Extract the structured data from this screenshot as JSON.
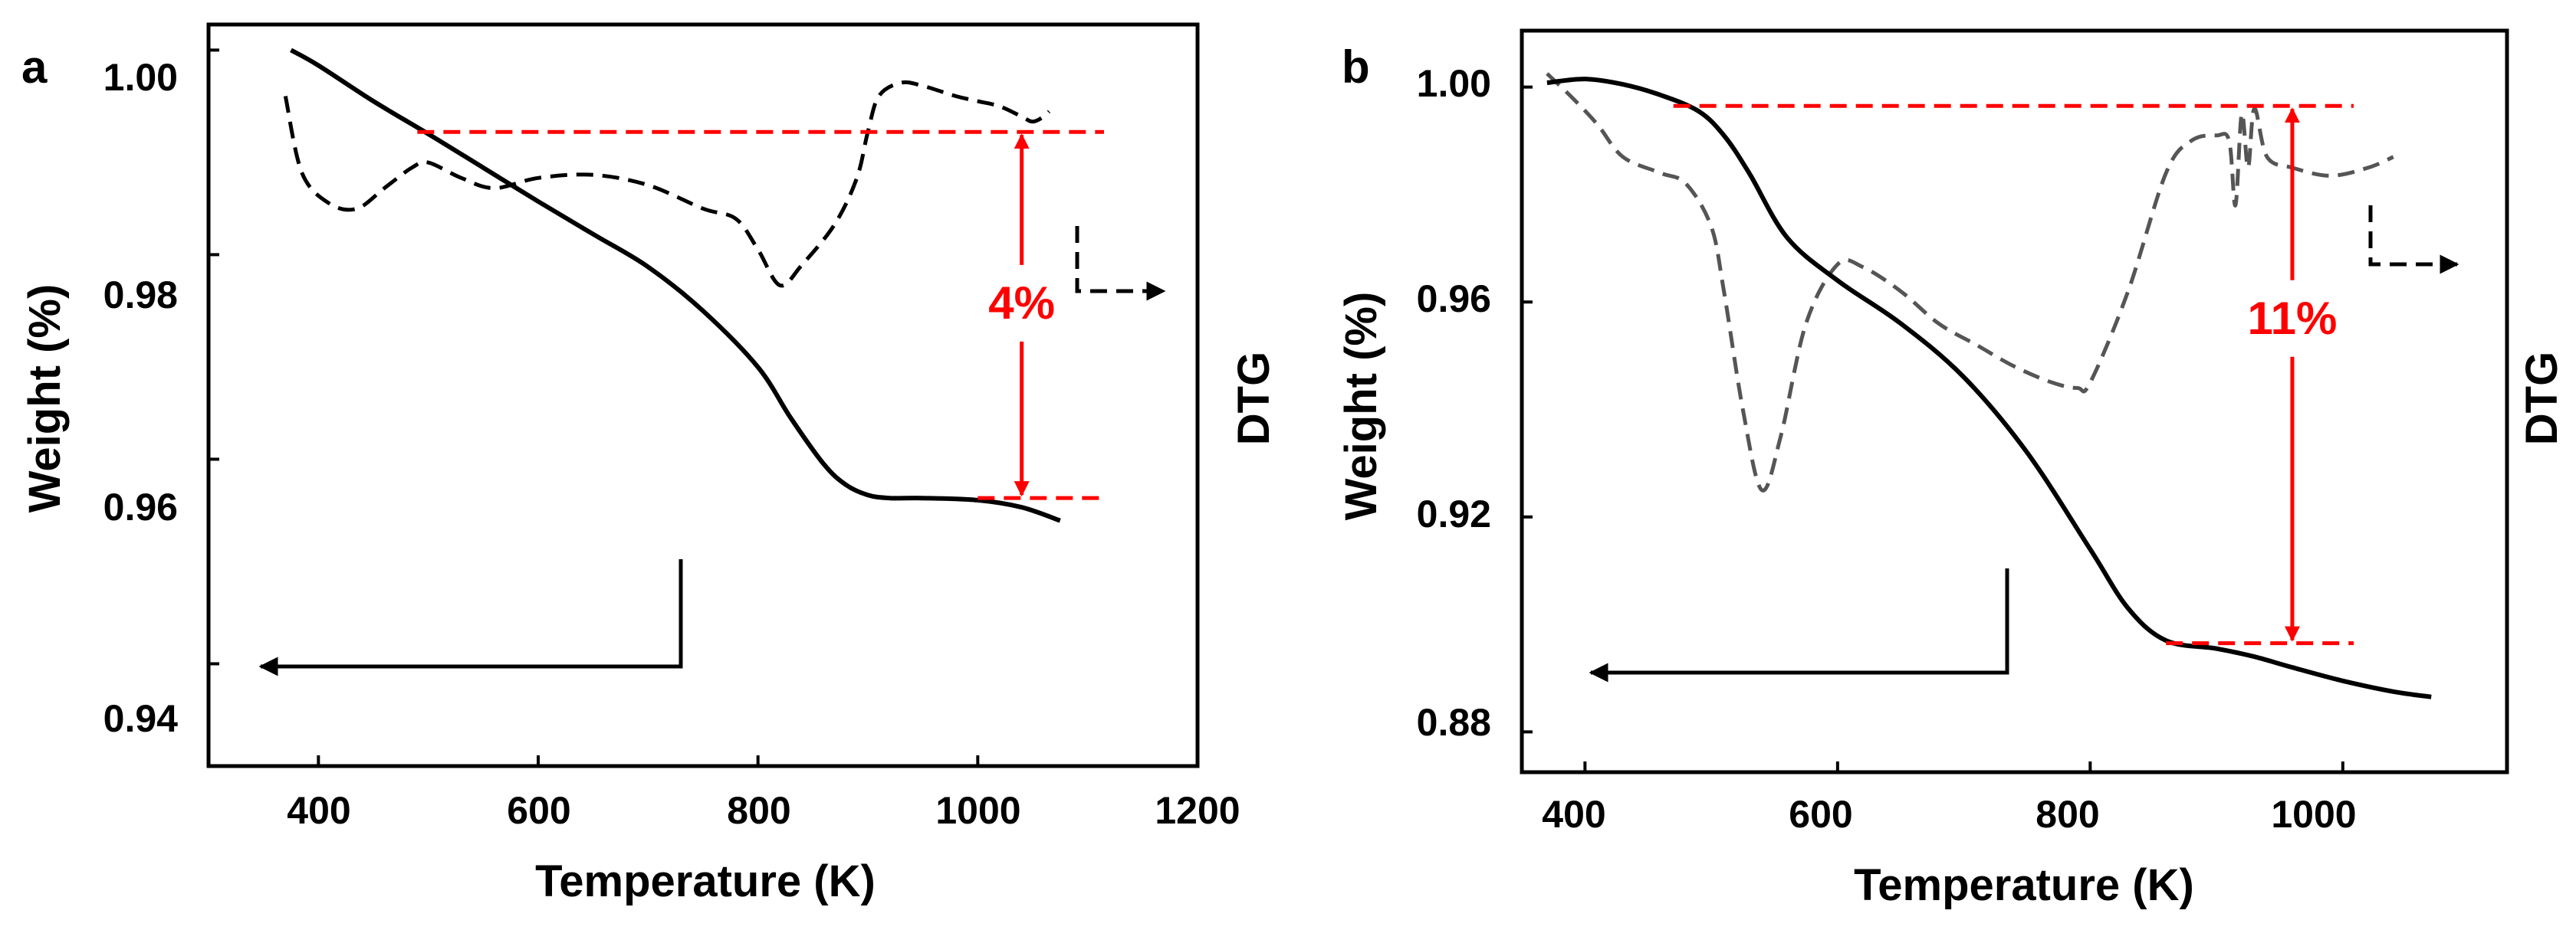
{
  "chart_data": [
    {
      "type": "line",
      "panel_label": "a",
      "xlabel": "Temperature (K)",
      "ylabel": "Weight (%)",
      "y2label": "DTG",
      "xlim": [
        300,
        1200
      ],
      "ylim": [
        0.93,
        1.0025
      ],
      "xticks": [
        400,
        600,
        800,
        1000,
        1200
      ],
      "yticks": [
        0.94,
        0.96,
        0.98,
        1.0
      ],
      "ytick_labels": [
        "0.94",
        "0.96",
        "0.98",
        "1.00"
      ],
      "series": [
        {
          "name": "Weight",
          "style": "solid",
          "color": "#000000",
          "x": [
            375,
            400,
            450,
            500,
            550,
            600,
            650,
            700,
            750,
            800,
            830,
            860,
            880,
            900,
            920,
            950,
            1000,
            1040,
            1075
          ],
          "y": [
            1.0,
            0.9985,
            0.995,
            0.9918,
            0.9885,
            0.9852,
            0.982,
            0.9788,
            0.9745,
            0.969,
            0.964,
            0.9595,
            0.9575,
            0.9565,
            0.9562,
            0.9562,
            0.956,
            0.9553,
            0.954
          ]
        },
        {
          "name": "DTG",
          "style": "dashed",
          "color": "#000000",
          "x": [
            370,
            385,
            410,
            435,
            460,
            485,
            500,
            530,
            560,
            600,
            650,
            700,
            750,
            780,
            800,
            820,
            840,
            870,
            890,
            900,
            910,
            930,
            950,
            980,
            1000,
            1020,
            1040,
            1050,
            1060,
            1065
          ],
          "y": [
            0.9955,
            0.988,
            0.985,
            0.9845,
            0.9865,
            0.9885,
            0.989,
            0.9875,
            0.9865,
            0.9875,
            0.9878,
            0.9868,
            0.9845,
            0.9835,
            0.9805,
            0.977,
            0.979,
            0.983,
            0.9875,
            0.992,
            0.9955,
            0.9968,
            0.9965,
            0.9955,
            0.995,
            0.9945,
            0.9935,
            0.993,
            0.9935,
            0.994
          ]
        }
      ],
      "annotation": {
        "text": "4%",
        "color": "#ff0000",
        "x": 1040,
        "y_top": 0.992,
        "y_bottom": 0.9562
      }
    },
    {
      "type": "line",
      "panel_label": "b",
      "xlabel": "Temperature (K)",
      "ylabel": "Weight (%)",
      "y2label": "DTG",
      "xlim": [
        350,
        1130
      ],
      "ylim": [
        0.8725,
        1.0105
      ],
      "xticks": [
        400,
        600,
        800,
        1000
      ],
      "yticks": [
        0.88,
        0.92,
        0.96,
        1.0
      ],
      "ytick_labels": [
        "0.88",
        "0.92",
        "0.96",
        "1.00"
      ],
      "series": [
        {
          "name": "Weight",
          "style": "solid",
          "color": "#000000",
          "x": [
            370,
            400,
            430,
            460,
            490,
            510,
            530,
            560,
            600,
            650,
            700,
            750,
            800,
            830,
            860,
            900,
            930,
            960,
            1000,
            1040,
            1070
          ],
          "y": [
            1.0008,
            1.0015,
            1.0005,
            0.9985,
            0.9955,
            0.991,
            0.984,
            0.972,
            0.964,
            0.956,
            0.946,
            0.932,
            0.914,
            0.903,
            0.897,
            0.8955,
            0.894,
            0.892,
            0.8895,
            0.8875,
            0.8865
          ]
        },
        {
          "name": "DTG",
          "style": "dashed",
          "color": "#555555",
          "x": [
            370,
            390,
            410,
            430,
            460,
            480,
            500,
            510,
            525,
            540,
            555,
            575,
            600,
            620,
            650,
            680,
            710,
            740,
            770,
            790,
            800,
            830,
            860,
            880,
            900,
            910,
            915,
            920,
            925,
            930,
            940,
            960,
            990,
            1020,
            1040
          ],
          "y": [
            1.0025,
            0.998,
            0.993,
            0.987,
            0.984,
            0.982,
            0.974,
            0.962,
            0.94,
            0.925,
            0.935,
            0.956,
            0.967,
            0.9665,
            0.962,
            0.956,
            0.952,
            0.948,
            0.945,
            0.944,
            0.945,
            0.962,
            0.984,
            0.99,
            0.991,
            0.99,
            0.978,
            0.995,
            0.985,
            0.996,
            0.987,
            0.985,
            0.9835,
            0.985,
            0.987
          ]
        }
      ],
      "annotation": {
        "text": "11%",
        "color": "#ff0000",
        "x": 960,
        "y_top": 0.9965,
        "y_bottom": 0.8965
      }
    }
  ]
}
